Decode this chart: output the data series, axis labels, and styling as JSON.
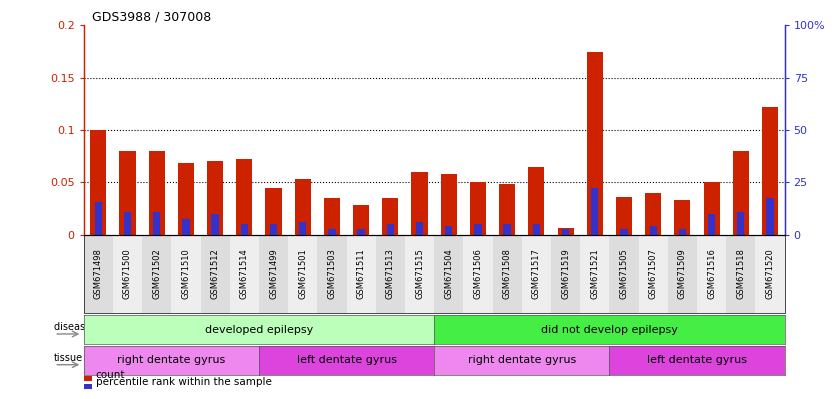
{
  "title": "GDS3988 / 307008",
  "samples": [
    "GSM671498",
    "GSM671500",
    "GSM671502",
    "GSM671510",
    "GSM671512",
    "GSM671514",
    "GSM671499",
    "GSM671501",
    "GSM671503",
    "GSM671511",
    "GSM671513",
    "GSM671515",
    "GSM671504",
    "GSM671506",
    "GSM671508",
    "GSM671517",
    "GSM671519",
    "GSM671521",
    "GSM671505",
    "GSM671507",
    "GSM671509",
    "GSM671516",
    "GSM671518",
    "GSM671520"
  ],
  "count_values": [
    0.1,
    0.08,
    0.08,
    0.068,
    0.07,
    0.072,
    0.045,
    0.053,
    0.035,
    0.028,
    0.035,
    0.06,
    0.058,
    0.05,
    0.048,
    0.065,
    0.006,
    0.175,
    0.036,
    0.04,
    0.033,
    0.05,
    0.08,
    0.122
  ],
  "percentile_values": [
    0.031,
    0.022,
    0.022,
    0.015,
    0.02,
    0.01,
    0.01,
    0.012,
    0.005,
    0.005,
    0.01,
    0.012,
    0.008,
    0.01,
    0.01,
    0.01,
    0.005,
    0.045,
    0.005,
    0.008,
    0.005,
    0.02,
    0.022,
    0.035
  ],
  "ylim_left": [
    0,
    0.2
  ],
  "ylim_right": [
    0,
    100
  ],
  "yticks_left": [
    0,
    0.05,
    0.1,
    0.15,
    0.2
  ],
  "yticks_right": [
    0,
    25,
    50,
    75,
    100
  ],
  "ytick_labels_left": [
    "0",
    "0.05",
    "0.1",
    "0.15",
    "0.2"
  ],
  "ytick_labels_right": [
    "0",
    "25",
    "50",
    "75",
    "100%"
  ],
  "hlines": [
    0.05,
    0.1,
    0.15
  ],
  "bar_color": "#cc2200",
  "percentile_color": "#3333cc",
  "disease_state_groups": [
    {
      "label": "developed epilepsy",
      "start": 0,
      "end": 12,
      "color": "#bbffbb"
    },
    {
      "label": "did not develop epilepsy",
      "start": 12,
      "end": 24,
      "color": "#44ee44"
    }
  ],
  "tissue_groups": [
    {
      "label": "right dentate gyrus",
      "start": 0,
      "end": 6,
      "color": "#ee88ee"
    },
    {
      "label": "left dentate gyrus",
      "start": 6,
      "end": 12,
      "color": "#dd44dd"
    },
    {
      "label": "right dentate gyrus",
      "start": 12,
      "end": 18,
      "color": "#ee88ee"
    },
    {
      "label": "left dentate gyrus",
      "start": 18,
      "end": 24,
      "color": "#dd44dd"
    }
  ],
  "legend_items": [
    {
      "label": "count",
      "color": "#cc2200"
    },
    {
      "label": "percentile rank within the sample",
      "color": "#3333cc"
    }
  ],
  "xticklabel_bg_colors": [
    "#dddddd",
    "#eeeeee"
  ],
  "title_fontsize": 9,
  "bar_width": 0.55,
  "percentile_bar_width": 0.25
}
